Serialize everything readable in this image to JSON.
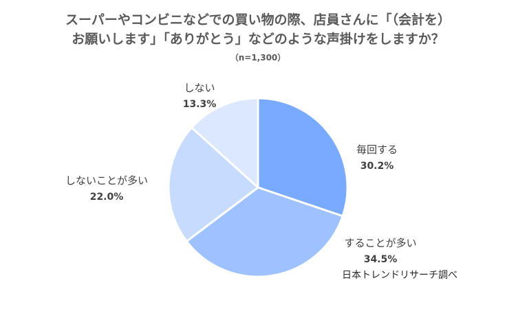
{
  "title": {
    "line1": "スーパーやコンビニなどでの買い物の際、店員さんに「（会計を）",
    "line2": "お願いします」「ありがとう」などのような声掛けをしますか？",
    "sample_size": "（n=1,300）"
  },
  "source": "日本トレンドリサーチ調べ",
  "colors": {
    "slice_1": "#78aaff",
    "slice_2": "#9ec1ff",
    "slice_3": "#c7dbff",
    "slice_4": "#dbe8ff",
    "separator": "#ffffff"
  },
  "chart_data": {
    "type": "pie",
    "title": "スーパーやコンビニなどでの買い物の際、店員さんに「（会計を）お願いします」「ありがとう」などのような声掛けをしますか？",
    "start_angle": "12 o'clock",
    "direction": "clockwise",
    "slices": [
      {
        "label": "毎回する",
        "value": 30.2,
        "value_label": "30.2%"
      },
      {
        "label": "することが多い",
        "value": 34.5,
        "value_label": "34.5%"
      },
      {
        "label": "しないことが多い",
        "value": 22.0,
        "value_label": "22.0%"
      },
      {
        "label": "しない",
        "value": 13.3,
        "value_label": "13.3%"
      }
    ]
  }
}
